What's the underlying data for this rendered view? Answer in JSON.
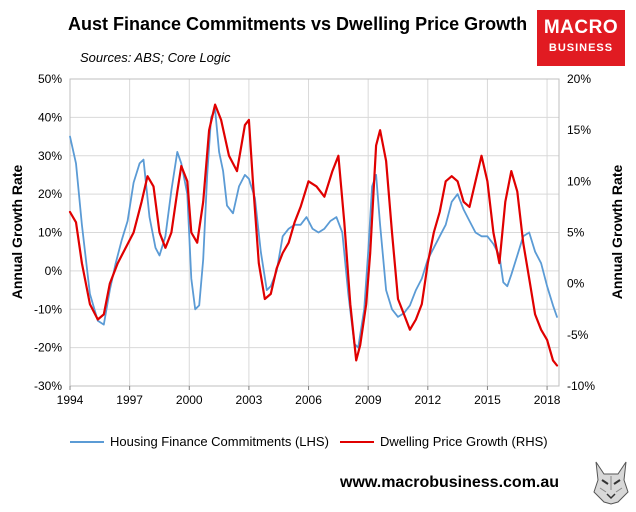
{
  "header": {
    "title": "Aust Finance Commitments vs Dwelling Price Growth",
    "sources": "Sources: ABS; Core Logic"
  },
  "logo": {
    "line1": "MACRO",
    "line2": "BUSINESS"
  },
  "footer": {
    "url": "www.macrobusiness.com.au"
  },
  "colors": {
    "lhs_series": "#5b9bd5",
    "rhs_series": "#e00000",
    "logo_bg": "#e11b22"
  },
  "chart_data": {
    "type": "line",
    "title": "Aust Finance Commitments vs Dwelling Price Growth",
    "xlabel": "",
    "ylabel_left": "Annual Growth Rate",
    "ylabel_right": "Annual Growth Rate",
    "xlim": [
      1994,
      2018.6
    ],
    "xticks": [
      1994,
      1997,
      2000,
      2003,
      2006,
      2009,
      2012,
      2015,
      2018
    ],
    "ylim_left": [
      -30,
      50
    ],
    "yticks_left": [
      "-30%",
      "-20%",
      "-10%",
      "0%",
      "10%",
      "20%",
      "30%",
      "40%",
      "50%"
    ],
    "ylim_right": [
      -10,
      20
    ],
    "yticks_right": [
      "-10%",
      "-5%",
      "0%",
      "5%",
      "10%",
      "15%",
      "20%"
    ],
    "series": [
      {
        "name": "Housing Finance Commitments (LHS)",
        "axis": "left",
        "x": [
          1994,
          1994.3,
          1994.6,
          1995.0,
          1995.4,
          1995.7,
          1996.0,
          1996.3,
          1996.6,
          1996.9,
          1997.2,
          1997.5,
          1997.7,
          1998.0,
          1998.3,
          1998.5,
          1998.8,
          1999.1,
          1999.4,
          1999.6,
          1999.9,
          2000.1,
          2000.3,
          2000.5,
          2000.7,
          2000.9,
          2001.1,
          2001.3,
          2001.5,
          2001.7,
          2001.9,
          2002.2,
          2002.5,
          2002.8,
          2003.0,
          2003.3,
          2003.6,
          2003.9,
          2004.1,
          2004.4,
          2004.7,
          2005.0,
          2005.3,
          2005.6,
          2005.9,
          2006.2,
          2006.5,
          2006.8,
          2007.1,
          2007.4,
          2007.7,
          2008.0,
          2008.3,
          2008.5,
          2008.8,
          2009.0,
          2009.2,
          2009.4,
          2009.6,
          2009.9,
          2010.2,
          2010.5,
          2010.8,
          2011.1,
          2011.4,
          2011.7,
          2012.0,
          2012.3,
          2012.6,
          2012.9,
          2013.2,
          2013.5,
          2013.8,
          2014.1,
          2014.4,
          2014.7,
          2015.0,
          2015.3,
          2015.6,
          2015.8,
          2016.0,
          2016.2,
          2016.5,
          2016.8,
          2017.1,
          2017.4,
          2017.7,
          2018.0,
          2018.3,
          2018.5
        ],
        "values": [
          35,
          28,
          12,
          -6,
          -13,
          -14,
          -5,
          2,
          8,
          13,
          23,
          28,
          29,
          14,
          6,
          4,
          9,
          21,
          31,
          28,
          20,
          -2,
          -10,
          -9,
          3,
          25,
          40,
          42,
          31,
          26,
          17,
          15,
          22,
          25,
          24,
          19,
          5,
          -5,
          -4,
          0,
          9,
          11,
          12,
          12,
          14,
          11,
          10,
          11,
          13,
          14,
          10,
          -6,
          -19,
          -20,
          -10,
          5,
          22,
          25,
          12,
          -5,
          -10,
          -12,
          -11,
          -9,
          -5,
          -2,
          3,
          6,
          9,
          12,
          18,
          20,
          16,
          13,
          10,
          9,
          9,
          7,
          4,
          -3,
          -4,
          -1,
          4,
          9,
          10,
          5,
          2,
          -4,
          -9,
          -12
        ]
      },
      {
        "name": "Dwelling Price Growth (RHS)",
        "axis": "right",
        "x": [
          1994,
          1994.3,
          1994.6,
          1995.0,
          1995.4,
          1995.7,
          1996.0,
          1996.4,
          1996.8,
          1997.2,
          1997.6,
          1997.9,
          1998.2,
          1998.5,
          1998.8,
          1999.1,
          1999.4,
          1999.6,
          1999.9,
          2000.1,
          2000.4,
          2000.7,
          2001.0,
          2001.3,
          2001.6,
          2002.0,
          2002.4,
          2002.8,
          2003.0,
          2003.2,
          2003.5,
          2003.8,
          2004.1,
          2004.4,
          2004.7,
          2005.0,
          2005.3,
          2005.6,
          2006.0,
          2006.4,
          2006.8,
          2007.2,
          2007.5,
          2007.8,
          2008.1,
          2008.4,
          2008.6,
          2008.9,
          2009.1,
          2009.4,
          2009.6,
          2009.9,
          2010.2,
          2010.5,
          2010.8,
          2011.1,
          2011.4,
          2011.7,
          2012.0,
          2012.3,
          2012.6,
          2012.9,
          2013.2,
          2013.5,
          2013.8,
          2014.1,
          2014.4,
          2014.7,
          2015.0,
          2015.3,
          2015.6,
          2015.9,
          2016.2,
          2016.5,
          2016.8,
          2017.1,
          2017.4,
          2017.7,
          2018.0,
          2018.3,
          2018.5
        ],
        "values": [
          7,
          6,
          2,
          -2,
          -3.5,
          -3,
          0,
          2,
          3.5,
          5,
          8,
          10.5,
          9.5,
          5,
          3.5,
          5,
          9,
          11.5,
          10,
          5,
          4,
          8,
          15,
          17.5,
          16,
          12.5,
          11,
          15.5,
          16,
          10,
          2,
          -1.5,
          -1,
          1.5,
          3,
          4,
          6,
          7.5,
          10,
          9.5,
          8.5,
          11,
          12.5,
          6,
          -2,
          -7.5,
          -6,
          -2,
          3,
          13.5,
          15,
          12,
          5,
          -1.5,
          -3,
          -4.5,
          -3.5,
          -2,
          2,
          5,
          7,
          10,
          10.5,
          10,
          8,
          7.5,
          10,
          12.5,
          10,
          5,
          2,
          8,
          11,
          9,
          4,
          0.5,
          -3,
          -4.5,
          -5.5,
          -7.5,
          -8
        ]
      }
    ]
  }
}
